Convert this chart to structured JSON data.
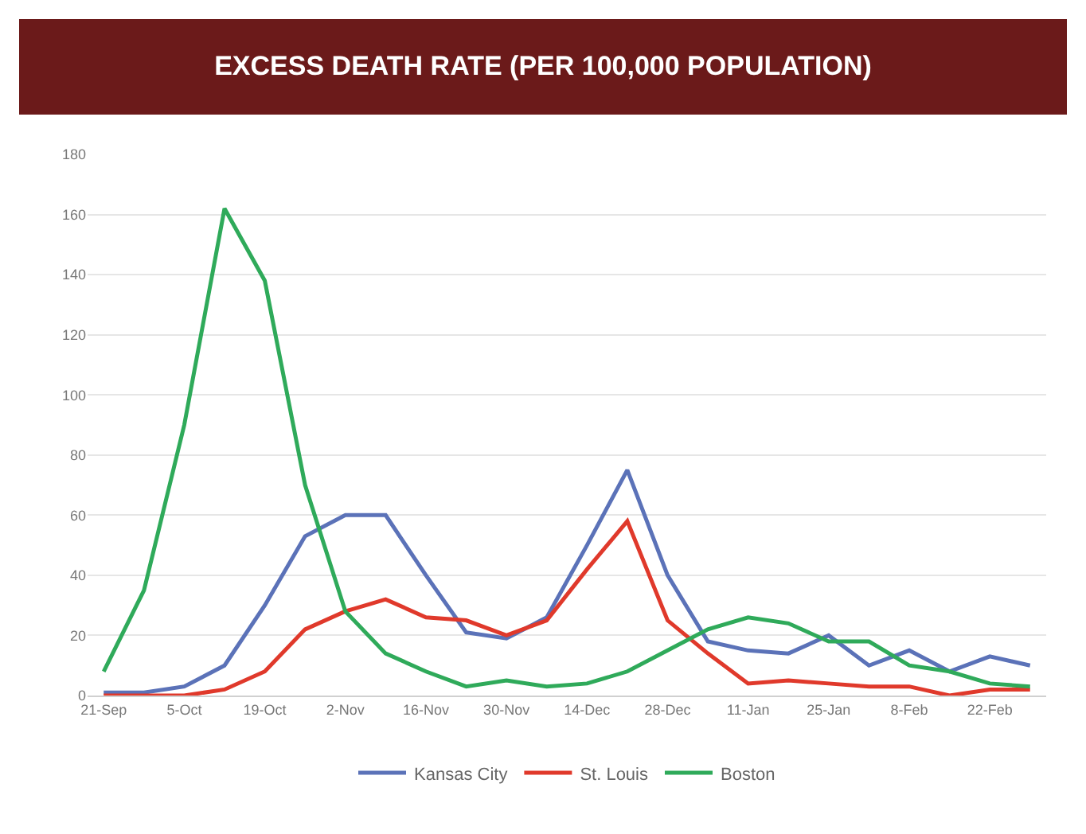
{
  "chart_data": {
    "type": "line",
    "title": "EXCESS DEATH RATE (PER 100,000 POPULATION)",
    "categories": [
      "21-Sep",
      null,
      "5-Oct",
      null,
      "19-Oct",
      null,
      "2-Nov",
      null,
      "16-Nov",
      null,
      "30-Nov",
      null,
      "14-Dec",
      null,
      "28-Dec",
      null,
      "11-Jan",
      null,
      "25-Jan",
      null,
      "8-Feb",
      null,
      "22-Feb",
      null
    ],
    "series": [
      {
        "name": "Kansas City",
        "color": "#5b72b8",
        "values": [
          1,
          1,
          3,
          10,
          30,
          53,
          60,
          60,
          40,
          21,
          19,
          26,
          50,
          75,
          40,
          18,
          15,
          14,
          20,
          10,
          15,
          8,
          13,
          10
        ]
      },
      {
        "name": "St. Louis",
        "color": "#e0392b",
        "values": [
          0,
          0,
          0,
          2,
          8,
          22,
          28,
          32,
          26,
          25,
          20,
          25,
          42,
          58,
          25,
          14,
          4,
          5,
          4,
          3,
          3,
          0,
          2,
          2
        ]
      },
      {
        "name": "Boston",
        "color": "#2faa5a",
        "values": [
          8,
          35,
          90,
          162,
          138,
          70,
          28,
          14,
          8,
          3,
          5,
          3,
          4,
          8,
          15,
          22,
          26,
          24,
          18,
          18,
          10,
          8,
          4,
          3
        ]
      }
    ],
    "ylim": [
      0,
      180
    ],
    "yticks": [
      0,
      20,
      40,
      60,
      80,
      100,
      120,
      140,
      160,
      180
    ],
    "grid": "y",
    "legend": "bottom",
    "marker": "none",
    "line_style": "solid"
  }
}
